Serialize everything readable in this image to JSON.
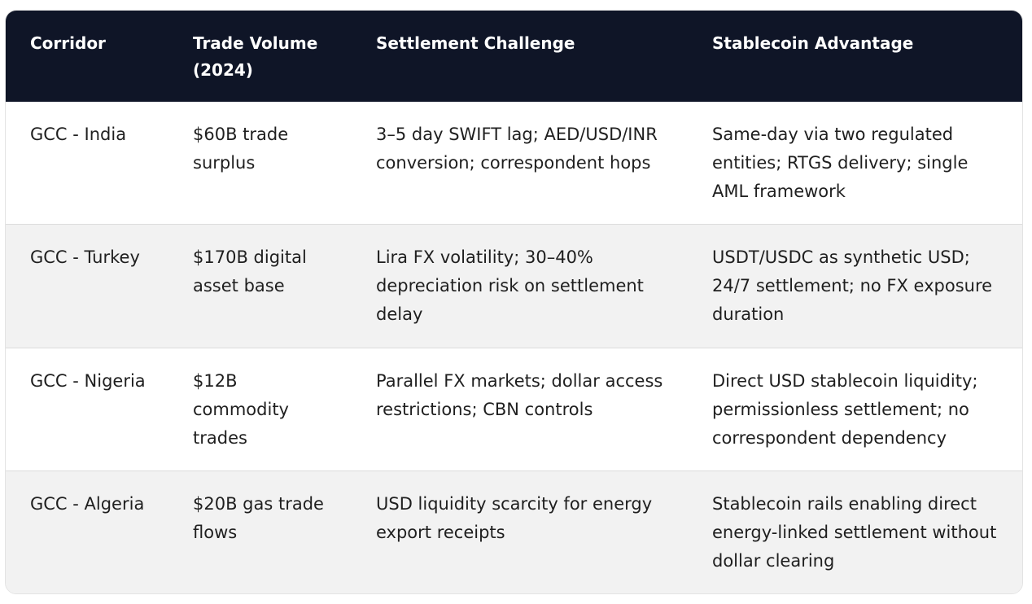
{
  "table": {
    "headers": [
      "Corridor",
      "Trade Volume (2024)",
      "Settlement Challenge",
      "Stablecoin Advantage"
    ],
    "rows": [
      [
        "GCC - India",
        "$60B trade surplus",
        "3–5 day SWIFT lag; AED/USD/INR conversion; correspondent hops",
        "Same-day via two regulated entities; RTGS delivery; single AML framework"
      ],
      [
        "GCC - Turkey",
        "$170B digital asset base",
        "Lira FX volatility; 30–40% depreciation risk on settlement delay",
        "USDT/USDC as synthetic USD; 24/7 settlement; no FX exposure duration"
      ],
      [
        "GCC - Nigeria",
        "$12B commodity trades",
        "Parallel FX markets; dollar access restrictions; CBN controls",
        "Direct USD stablecoin liquidity; permissionless settlement; no correspondent dependency"
      ],
      [
        "GCC - Algeria",
        "$20B gas trade flows",
        "USD liquidity scarcity for energy export receipts",
        "Stablecoin rails enabling direct energy-linked settlement without dollar clearing"
      ]
    ]
  },
  "colors": {
    "header_bg": "#0f1527",
    "header_text": "#ffffff",
    "row_alt_bg": "#f2f2f2",
    "text": "#1f1f1f"
  }
}
